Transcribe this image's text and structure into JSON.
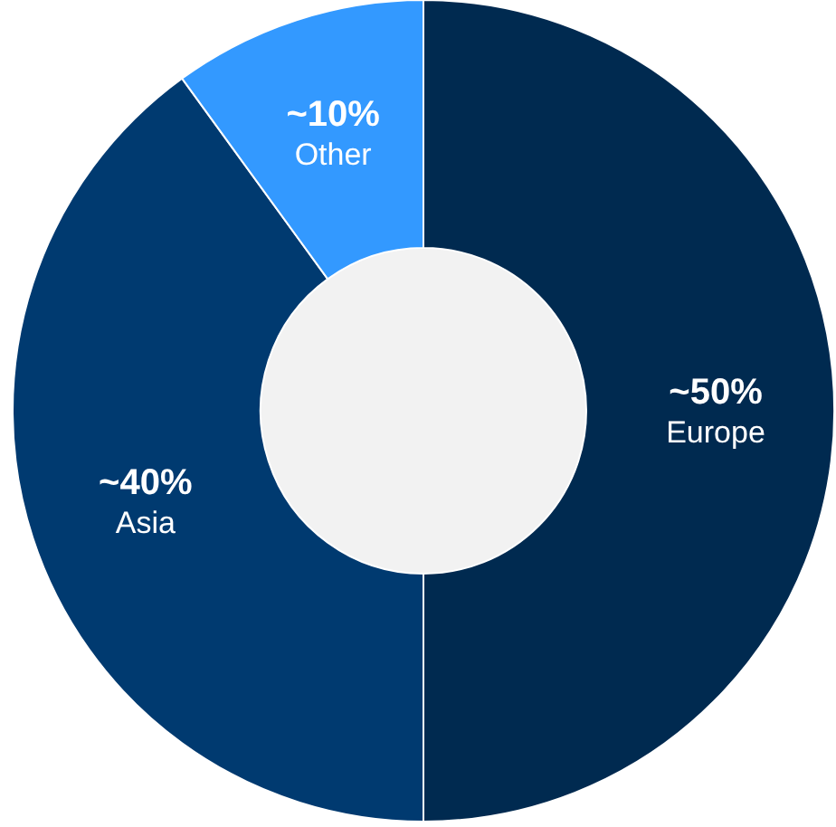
{
  "chart_data": {
    "type": "donut",
    "categories": [
      "Europe",
      "Asia",
      "Other"
    ],
    "values": [
      50,
      40,
      10
    ],
    "value_labels": [
      "~50%",
      "~40%",
      "~10%"
    ],
    "colors": [
      "#002a50",
      "#003a70",
      "#3399ff"
    ],
    "legend": false
  }
}
